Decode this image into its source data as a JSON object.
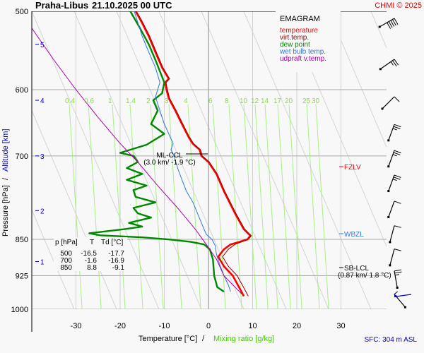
{
  "header": {
    "station": "Praha-Libus",
    "datetime": "21.10.2025 00 UTC",
    "copyright": "CHMI © 2025"
  },
  "legend": {
    "title": "EMAGRAM",
    "items": [
      {
        "label": "temperature",
        "color": "#ff0000"
      },
      {
        "label": "virt.temp.",
        "color": "#990000"
      },
      {
        "label": "dew point",
        "color": "#008800"
      },
      {
        "label": "wet bulb temp.",
        "color": "#3377dd"
      },
      {
        "label": "udpraft v.temp.",
        "color": "#aa00aa"
      }
    ]
  },
  "footer": {
    "sfc": "SFC: 304 m ASL"
  },
  "table": {
    "headers": [
      "p [hPa]",
      "T",
      "Td [°C]"
    ],
    "rows": [
      [
        "500",
        "-16.5",
        "-17.7"
      ],
      [
        "700",
        "-1.6",
        "-16.9"
      ],
      [
        "850",
        "8.8",
        "-9.1"
      ]
    ]
  },
  "annotations": {
    "ml_ccl": "ML-CCL",
    "ml_ccl_detail": "(3.0 km/ -1.9 °C)",
    "sb_lcl": "SB-LCL",
    "sb_lcl_detail": "(0.87 km/ 1.8 °C)",
    "fzlv": "FZLV",
    "wbzl": "WBZL"
  },
  "chart_data": {
    "type": "line",
    "title": "Praha-Libus 21.10.2025 00 UTC",
    "subtitle": "EMAGRAM",
    "xlabel": "Temperature [°C]",
    "xlabel2": "Mixing ratio [g/kg]",
    "ylabel": "Pressure [hPa]",
    "ylabel2": "Altitude [km]",
    "xlim": [
      -40,
      40
    ],
    "ylim": [
      1000,
      500
    ],
    "x_ticks": [
      -30,
      -20,
      -10,
      0,
      10,
      20,
      30
    ],
    "y_ticks": [
      500,
      600,
      700,
      850,
      925,
      1000
    ],
    "altitude_ticks": [
      {
        "km": 1,
        "p": 895
      },
      {
        "km": 2,
        "p": 795
      },
      {
        "km": 3,
        "p": 700
      },
      {
        "km": 4,
        "p": 615
      },
      {
        "km": 5,
        "p": 540
      }
    ],
    "mixing_ratio_labels": [
      "0.4",
      "0.6",
      "1",
      "1.4",
      "2",
      "3",
      "4",
      "6",
      "8",
      "10",
      "12",
      "14",
      "17",
      "20",
      "25",
      "30"
    ],
    "grid": true,
    "series": [
      {
        "name": "temperature",
        "color": "#ff0000",
        "points": [
          [
            8.0,
            970
          ],
          [
            7.2,
            955
          ],
          [
            5.5,
            925
          ],
          [
            3.5,
            905
          ],
          [
            2.2,
            885
          ],
          [
            3.5,
            870
          ],
          [
            5.0,
            860
          ],
          [
            7.0,
            855
          ],
          [
            8.8,
            850
          ],
          [
            9.5,
            843
          ],
          [
            8.0,
            830
          ],
          [
            6.0,
            800
          ],
          [
            3.5,
            760
          ],
          [
            1.8,
            730
          ],
          [
            0.0,
            710
          ],
          [
            -1.6,
            700
          ],
          [
            -2.0,
            690
          ],
          [
            -3.6,
            680
          ],
          [
            -4.5,
            670
          ],
          [
            -6.0,
            650
          ],
          [
            -7.5,
            630
          ],
          [
            -9.0,
            612
          ],
          [
            -9.5,
            600
          ],
          [
            -9.8,
            590
          ],
          [
            -9.0,
            585
          ],
          [
            -10.5,
            570
          ],
          [
            -12.0,
            550
          ],
          [
            -13.5,
            530
          ],
          [
            -15.2,
            512
          ],
          [
            -16.5,
            500
          ]
        ]
      },
      {
        "name": "virt.temp.",
        "color": "#990000",
        "points": [
          [
            9.0,
            970
          ],
          [
            8.2,
            955
          ],
          [
            6.5,
            925
          ],
          [
            4.5,
            905
          ],
          [
            3.2,
            885
          ],
          [
            4.5,
            870
          ],
          [
            6.0,
            860
          ],
          [
            7.5,
            855
          ],
          [
            9.0,
            850
          ],
          [
            9.7,
            843
          ],
          [
            8.2,
            830
          ],
          [
            6.2,
            800
          ],
          [
            3.7,
            760
          ],
          [
            2.0,
            730
          ],
          [
            0.2,
            710
          ],
          [
            -1.4,
            700
          ],
          [
            -1.8,
            690
          ],
          [
            -3.4,
            680
          ],
          [
            -4.3,
            670
          ],
          [
            -5.8,
            650
          ],
          [
            -7.3,
            630
          ],
          [
            -8.8,
            612
          ],
          [
            -9.3,
            600
          ],
          [
            -9.6,
            590
          ],
          [
            -8.8,
            585
          ],
          [
            -10.3,
            570
          ],
          [
            -11.8,
            550
          ],
          [
            -13.3,
            530
          ],
          [
            -15.0,
            512
          ],
          [
            -16.3,
            500
          ]
        ]
      },
      {
        "name": "dew point",
        "color": "#008800",
        "points": [
          [
            3.5,
            960
          ],
          [
            2.0,
            950
          ],
          [
            1.3,
            925
          ],
          [
            1.0,
            890
          ],
          [
            0.3,
            870
          ],
          [
            -1.0,
            860
          ],
          [
            -4.0,
            855
          ],
          [
            -9.1,
            850
          ],
          [
            -15.0,
            846
          ],
          [
            -24.5,
            842
          ],
          [
            -27.0,
            838
          ],
          [
            -19.0,
            830
          ],
          [
            -15.0,
            825
          ],
          [
            -18.0,
            818
          ],
          [
            -13.0,
            808
          ],
          [
            -16.0,
            800
          ],
          [
            -17.0,
            790
          ],
          [
            -12.0,
            780
          ],
          [
            -16.5,
            770
          ],
          [
            -17.0,
            758
          ],
          [
            -14.0,
            750
          ],
          [
            -18.5,
            740
          ],
          [
            -15.0,
            730
          ],
          [
            -18.5,
            720
          ],
          [
            -16.0,
            710
          ],
          [
            -16.9,
            700
          ],
          [
            -20.0,
            695
          ],
          [
            -14.0,
            682
          ],
          [
            -10.0,
            665
          ],
          [
            -13.0,
            650
          ],
          [
            -11.5,
            630
          ],
          [
            -12.5,
            615
          ],
          [
            -10.5,
            605
          ],
          [
            -10.0,
            590
          ],
          [
            -11.0,
            575
          ],
          [
            -12.0,
            560
          ],
          [
            -13.5,
            540
          ],
          [
            -15.5,
            520
          ],
          [
            -17.7,
            500
          ]
        ]
      },
      {
        "name": "wet bulb temp.",
        "color": "#3377dd",
        "points": [
          [
            5.0,
            960
          ],
          [
            4.5,
            945
          ],
          [
            3.5,
            925
          ],
          [
            2.5,
            900
          ],
          [
            1.8,
            880
          ],
          [
            1.5,
            862
          ],
          [
            0.8,
            850
          ],
          [
            -0.5,
            840
          ],
          [
            -1.5,
            820
          ],
          [
            -2.5,
            800
          ],
          [
            -3.5,
            780
          ],
          [
            -5.0,
            760
          ],
          [
            -6.0,
            740
          ],
          [
            -7.0,
            720
          ],
          [
            -7.8,
            700
          ],
          [
            -8.5,
            690
          ],
          [
            -8.0,
            680
          ],
          [
            -9.0,
            665
          ],
          [
            -10.0,
            650
          ],
          [
            -11.0,
            630
          ],
          [
            -12.0,
            610
          ],
          [
            -11.5,
            600
          ],
          [
            -11.0,
            590
          ],
          [
            -12.0,
            570
          ],
          [
            -13.5,
            550
          ],
          [
            -15.0,
            530
          ],
          [
            -16.8,
            500
          ]
        ]
      },
      {
        "name": "udpraft v.temp.",
        "color": "#aa00aa",
        "points": [
          [
            7.5,
            965
          ],
          [
            3.5,
            925
          ],
          [
            1.8,
            890
          ],
          [
            -0.5,
            860
          ],
          [
            -3.0,
            830
          ],
          [
            -7.0,
            790
          ],
          [
            -11.5,
            750
          ],
          [
            -16.0,
            710
          ],
          [
            -20.0,
            680
          ],
          [
            -25.0,
            640
          ],
          [
            -30.0,
            600
          ],
          [
            -35.0,
            560
          ],
          [
            -40.0,
            520
          ],
          [
            -43.0,
            500
          ]
        ]
      }
    ],
    "wind_barbs": [
      {
        "p": 500,
        "dir": 240,
        "kt": 50
      },
      {
        "p": 550,
        "dir": 235,
        "kt": 25
      },
      {
        "p": 600,
        "dir": 225,
        "kt": 10
      },
      {
        "p": 640,
        "dir": 200,
        "kt": 25
      },
      {
        "p": 680,
        "dir": 200,
        "kt": 25
      },
      {
        "p": 720,
        "dir": 200,
        "kt": 25
      },
      {
        "p": 765,
        "dir": 200,
        "kt": 10
      },
      {
        "p": 810,
        "dir": 195,
        "kt": 10
      },
      {
        "p": 855,
        "dir": 195,
        "kt": 10
      },
      {
        "p": 900,
        "dir": 170,
        "kt": 25
      },
      {
        "p": 950,
        "dir": 140,
        "kt": 5
      }
    ],
    "levels": {
      "fzlv_p": 715,
      "wbzl_p": 843,
      "sb_lcl_p": 905,
      "ml_ccl_p": 700
    }
  }
}
